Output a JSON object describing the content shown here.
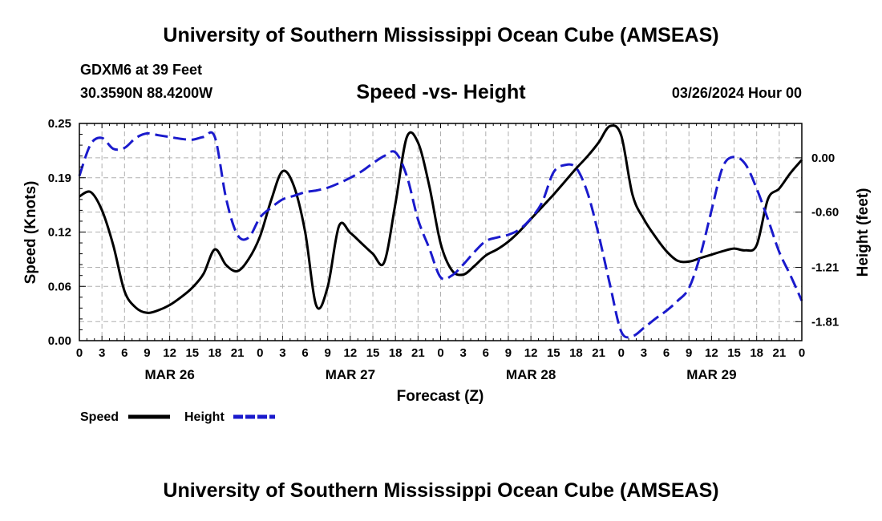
{
  "header": {
    "title": "University of Southern Mississippi Ocean Cube (AMSEAS)",
    "station": "GDXM6 at 39 Feet",
    "coords": "30.3590N  88.4200W",
    "subtitle": "Speed -vs- Height",
    "datestamp": "03/26/2024 Hour 00"
  },
  "footer": {
    "title": "University of Southern Mississippi Ocean Cube (AMSEAS)"
  },
  "colors": {
    "speed": "#000000",
    "height": "#1a1acc",
    "grid": "#b0b0b0"
  },
  "chart_data": {
    "type": "line",
    "title": "Speed -vs- Height",
    "xlabel": "Forecast (Z)",
    "ylabel": "Speed (Knots)",
    "y2label": "Height (feet)",
    "xlim": [
      0,
      96
    ],
    "ylim": [
      0,
      0.25
    ],
    "y2lim": [
      -2.02,
      0.38
    ],
    "x_tick_labels": [
      "0",
      "3",
      "6",
      "9",
      "12",
      "15",
      "18",
      "21",
      "0",
      "3",
      "6",
      "9",
      "12",
      "15",
      "18",
      "21",
      "0",
      "3",
      "6",
      "9",
      "12",
      "15",
      "18",
      "21",
      "0",
      "3",
      "6",
      "9",
      "12",
      "15",
      "18",
      "21",
      "0"
    ],
    "y_ticks": [
      "0.00",
      "0.06",
      "0.12",
      "0.19",
      "0.25"
    ],
    "y_tick_values": [
      0,
      0.0625,
      0.125,
      0.1875,
      0.25
    ],
    "y2_ticks": [
      "0.00",
      "-0.60",
      "-1.21",
      "-1.81"
    ],
    "y2_tick_values": [
      0.0,
      -0.6,
      -1.21,
      -1.81
    ],
    "day_labels": [
      {
        "label": "MAR 26",
        "x": 12
      },
      {
        "label": "MAR 27",
        "x": 36
      },
      {
        "label": "MAR 28",
        "x": 60
      },
      {
        "label": "MAR 29",
        "x": 84
      }
    ],
    "grid": true,
    "legend": [
      {
        "name": "Speed",
        "style": "solid"
      },
      {
        "name": "Height",
        "style": "dashed"
      }
    ],
    "series": [
      {
        "name": "Speed",
        "axis": "left",
        "x": [
          0,
          1.5,
          3,
          4.5,
          6,
          7.5,
          9,
          10.5,
          12,
          13.5,
          15,
          16.5,
          18,
          19.5,
          21,
          22.5,
          24,
          25.5,
          27,
          28.5,
          30,
          31.5,
          33,
          34.5,
          36,
          37.5,
          39,
          40.5,
          42,
          43.5,
          45,
          46.5,
          48,
          49.5,
          51,
          52.5,
          54,
          55.5,
          57,
          58.5,
          60,
          61.5,
          63,
          64.5,
          66,
          67.5,
          69,
          70.5,
          72,
          73.5,
          75,
          76.5,
          78,
          79.5,
          81,
          82.5,
          84,
          85.5,
          87,
          88.5,
          90,
          91.5,
          93,
          94.5,
          96
        ],
        "values": [
          0.166,
          0.171,
          0.15,
          0.11,
          0.057,
          0.038,
          0.032,
          0.035,
          0.041,
          0.05,
          0.061,
          0.077,
          0.105,
          0.087,
          0.08,
          0.094,
          0.12,
          0.162,
          0.195,
          0.178,
          0.125,
          0.04,
          0.062,
          0.132,
          0.124,
          0.112,
          0.1,
          0.09,
          0.158,
          0.234,
          0.228,
          0.178,
          0.112,
          0.081,
          0.076,
          0.086,
          0.098,
          0.105,
          0.114,
          0.126,
          0.14,
          0.154,
          0.168,
          0.183,
          0.198,
          0.212,
          0.228,
          0.247,
          0.236,
          0.168,
          0.14,
          0.12,
          0.103,
          0.092,
          0.091,
          0.095,
          0.099,
          0.103,
          0.106,
          0.104,
          0.11,
          0.163,
          0.175,
          0.193,
          0.208
        ]
      },
      {
        "name": "Height",
        "axis": "right",
        "x": [
          0,
          1.5,
          3,
          4.5,
          6,
          7.5,
          9,
          10.5,
          12,
          13.5,
          15,
          16.5,
          18,
          19.5,
          21,
          22.5,
          24,
          25.5,
          27,
          28.5,
          30,
          31.5,
          33,
          34.5,
          36,
          37.5,
          39,
          40.5,
          42,
          43.5,
          45,
          46.5,
          48,
          49.5,
          51,
          52.5,
          54,
          55.5,
          57,
          58.5,
          60,
          61.5,
          63,
          64.5,
          66,
          67.5,
          69,
          70.5,
          72,
          73.5,
          75,
          76.5,
          78,
          79.5,
          81,
          82.5,
          84,
          85.5,
          87,
          88.5,
          90,
          91.5,
          93,
          94.5,
          96
        ],
        "values": [
          -0.2,
          0.15,
          0.22,
          0.1,
          0.11,
          0.22,
          0.27,
          0.25,
          0.23,
          0.21,
          0.2,
          0.23,
          0.23,
          -0.45,
          -0.85,
          -0.88,
          -0.66,
          -0.55,
          -0.46,
          -0.42,
          -0.38,
          -0.36,
          -0.33,
          -0.28,
          -0.22,
          -0.15,
          -0.06,
          0.02,
          0.06,
          -0.2,
          -0.68,
          -1.0,
          -1.32,
          -1.3,
          -1.18,
          -1.04,
          -0.92,
          -0.88,
          -0.85,
          -0.79,
          -0.67,
          -0.49,
          -0.16,
          -0.08,
          -0.11,
          -0.38,
          -0.85,
          -1.4,
          -1.92,
          -1.97,
          -1.88,
          -1.78,
          -1.69,
          -1.58,
          -1.44,
          -1.08,
          -0.58,
          -0.1,
          0.01,
          -0.07,
          -0.34,
          -0.68,
          -1.04,
          -1.3,
          -1.58
        ]
      }
    ]
  }
}
